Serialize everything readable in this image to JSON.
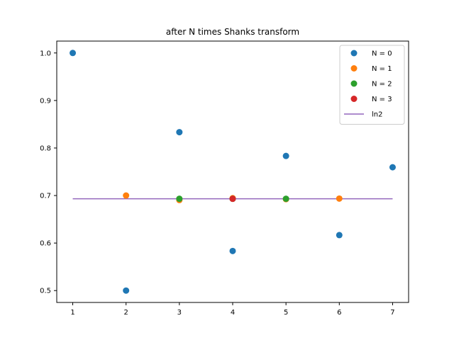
{
  "chart_data": {
    "type": "scatter",
    "title": "after N  times Shanks transform",
    "xlabel": "",
    "ylabel": "",
    "xlim": [
      0.7,
      7.3
    ],
    "ylim": [
      0.475,
      1.025
    ],
    "xticks": [
      1,
      2,
      3,
      4,
      5,
      6,
      7
    ],
    "yticks": [
      0.5,
      0.6,
      0.7,
      0.8,
      0.9,
      1.0
    ],
    "ytick_labels": [
      "0.5",
      "0.6",
      "0.7",
      "0.8",
      "0.9",
      "1.0"
    ],
    "grid": false,
    "legend_position": "top-right",
    "series": [
      {
        "name": "N = 0",
        "color": "#1f77b4",
        "marker": "circle",
        "x": [
          1,
          2,
          3,
          4,
          5,
          6,
          7
        ],
        "y": [
          1.0,
          0.5,
          0.8333,
          0.5833,
          0.7833,
          0.6167,
          0.7595
        ]
      },
      {
        "name": "N = 1",
        "color": "#ff7f0e",
        "marker": "circle",
        "x": [
          2,
          3,
          4,
          5,
          6
        ],
        "y": [
          0.7,
          0.6905,
          0.6944,
          0.6924,
          0.6936
        ]
      },
      {
        "name": "N = 2",
        "color": "#2ca02c",
        "marker": "circle",
        "x": [
          3,
          4,
          5
        ],
        "y": [
          0.6932,
          0.6931,
          0.6932
        ]
      },
      {
        "name": "N = 3",
        "color": "#d62728",
        "marker": "circle",
        "x": [
          4
        ],
        "y": [
          0.6931
        ]
      }
    ],
    "lines": [
      {
        "name": "ln2",
        "color": "#9467bd",
        "x": [
          1,
          7
        ],
        "y": [
          0.6931,
          0.6931
        ]
      }
    ]
  }
}
